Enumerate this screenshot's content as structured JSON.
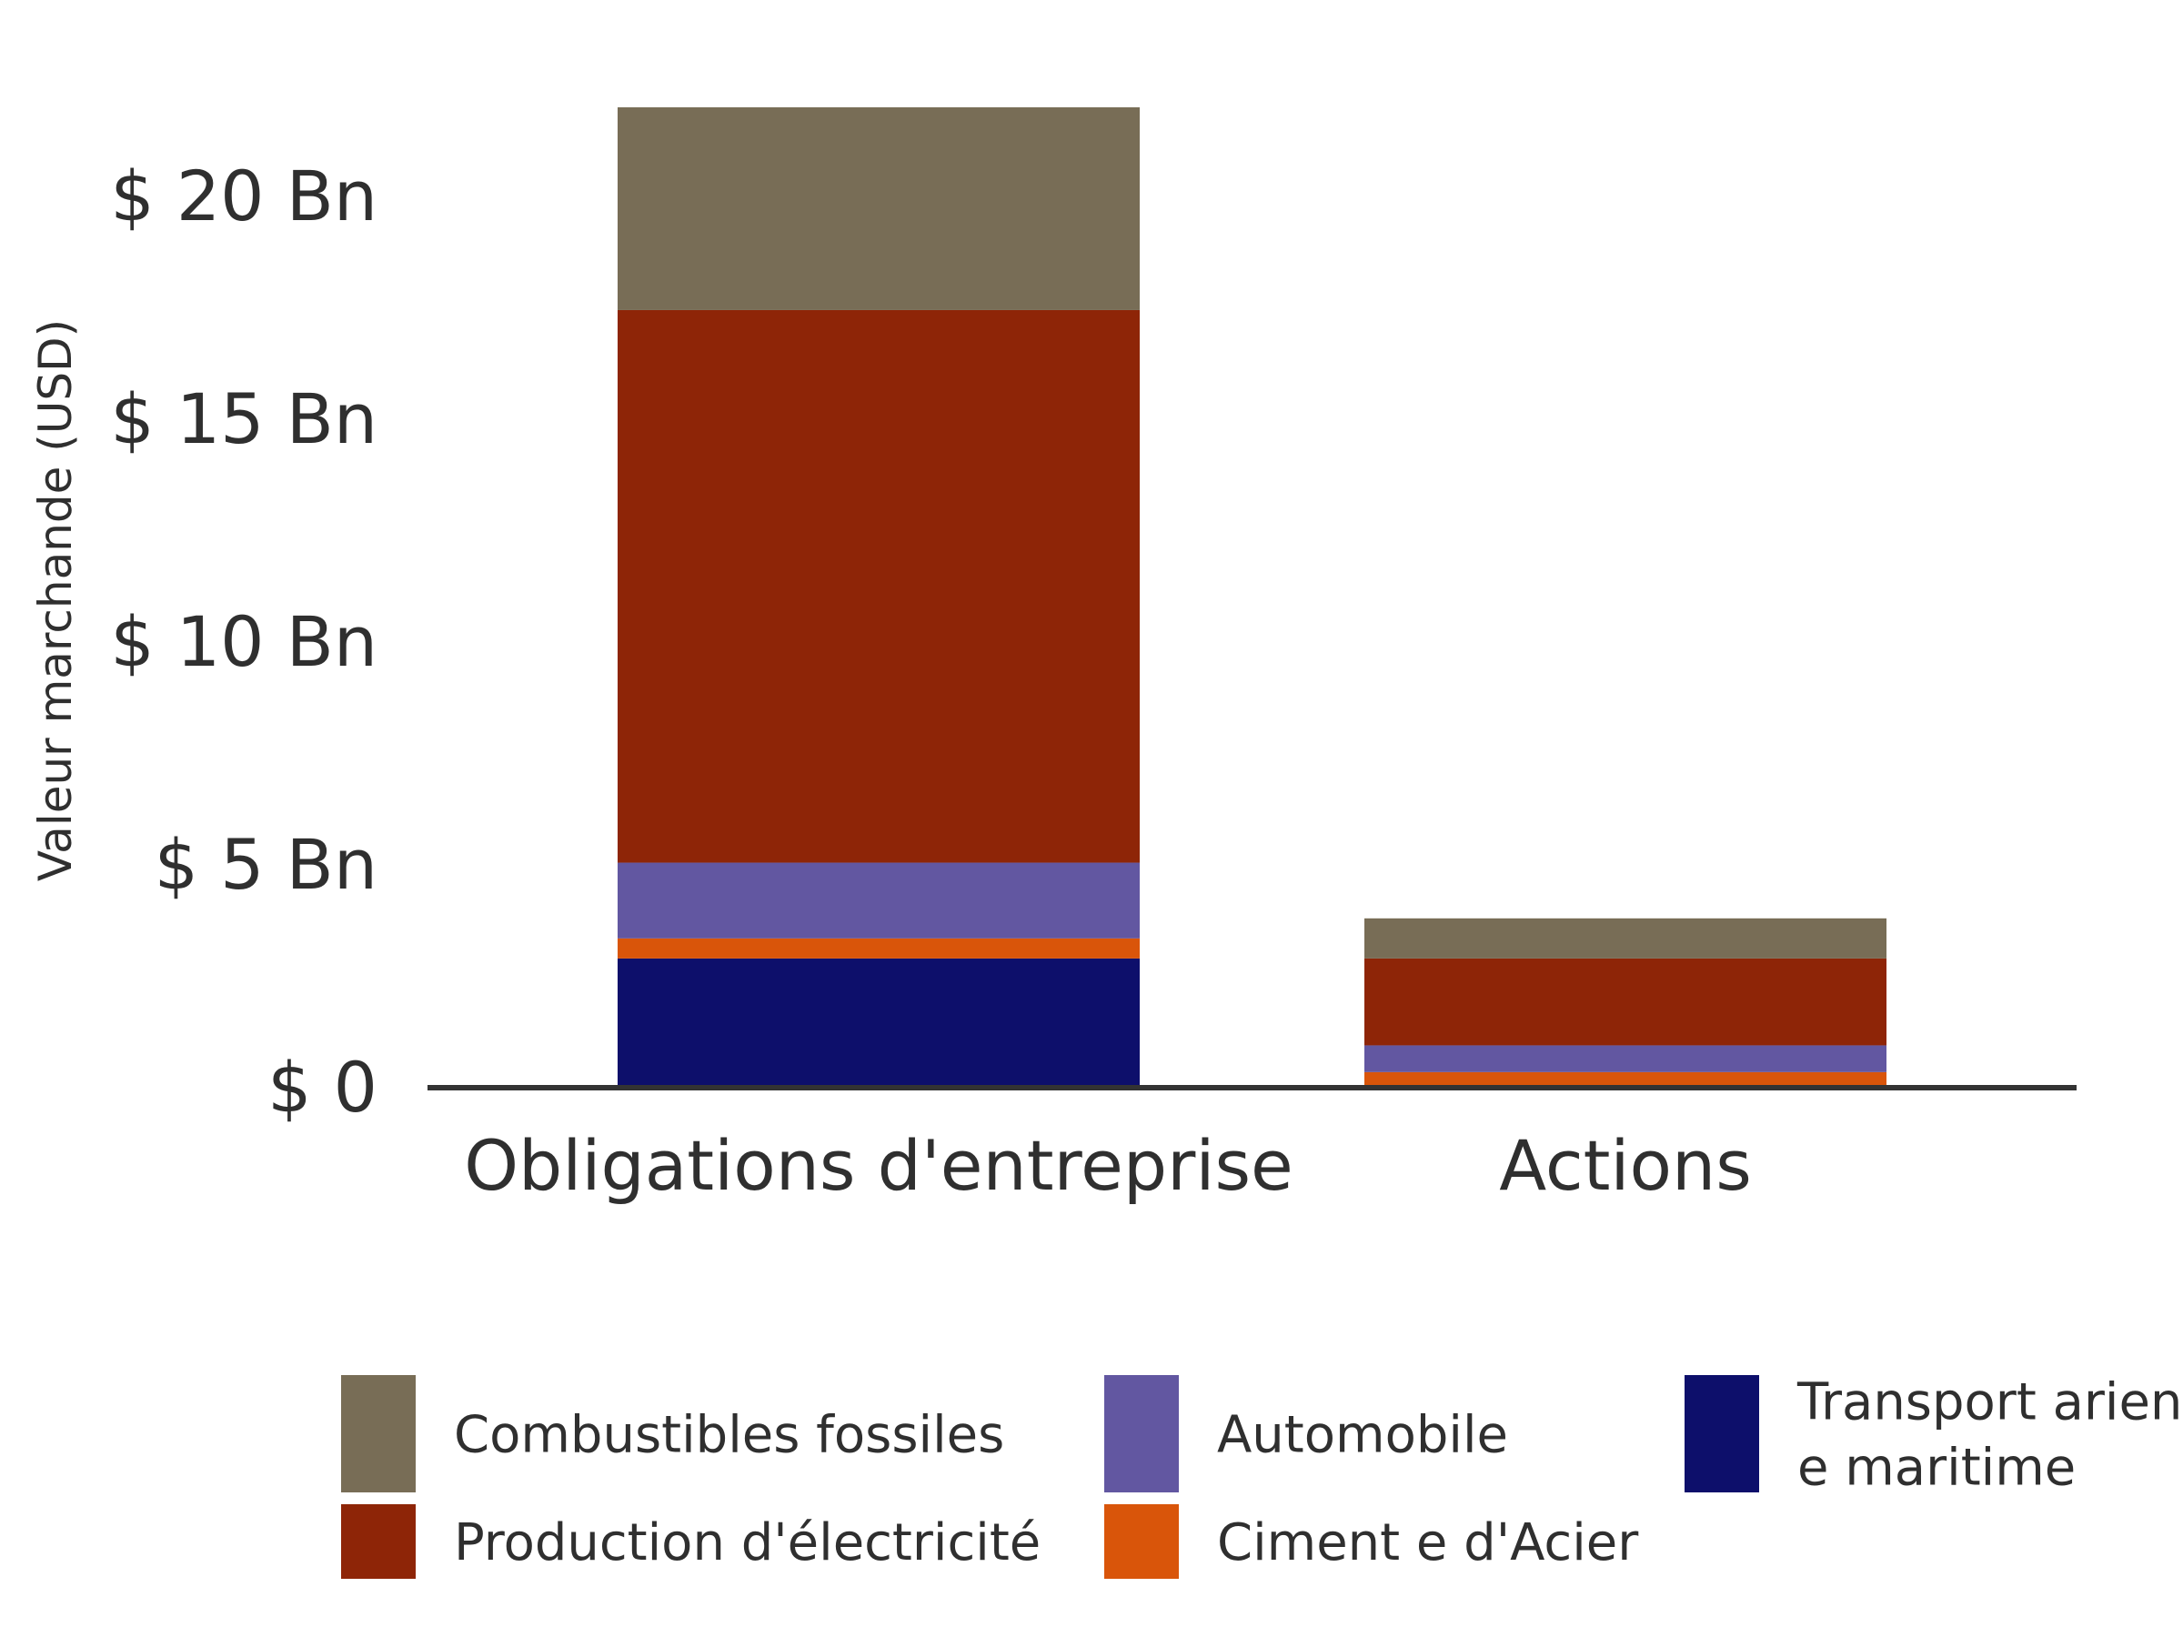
{
  "chart_data": {
    "type": "bar",
    "stacked": true,
    "title": "",
    "xlabel": "",
    "ylabel": "Valeur marchande (USD)",
    "ylim": [
      0,
      22
    ],
    "categories": [
      "Obligations d'entreprise",
      "Actions"
    ],
    "y_ticks": [
      {
        "value": 0,
        "label": "$ 0"
      },
      {
        "value": 5,
        "label": "$ 5 Bn"
      },
      {
        "value": 10,
        "label": "$ 10 Bn"
      },
      {
        "value": 15,
        "label": "$ 15 Bn"
      },
      {
        "value": 20,
        "label": "$ 20 Bn"
      }
    ],
    "series": [
      {
        "name": "Transport arien e maritime",
        "legend_lines": [
          "Transport arien",
          "e maritime"
        ],
        "color": "#0d0f6b",
        "values": [
          2.9,
          0.0
        ]
      },
      {
        "name": "Ciment e d'Acier",
        "legend_lines": [
          "Ciment e d'Acier"
        ],
        "color": "#d9550a",
        "values": [
          0.45,
          0.35
        ]
      },
      {
        "name": "Automobile",
        "legend_lines": [
          "Automobile"
        ],
        "color": "#6257a1",
        "values": [
          1.7,
          0.6
        ]
      },
      {
        "name": "Production d'électricité",
        "legend_lines": [
          "Production d'électricité"
        ],
        "color": "#8e2507",
        "values": [
          12.4,
          1.95
        ]
      },
      {
        "name": "Combustibles fossiles",
        "legend_lines": [
          "Combustibles fossiles"
        ],
        "color": "#786d56",
        "values": [
          4.55,
          0.9
        ]
      }
    ],
    "legend_order": [
      "Combustibles fossiles",
      "Automobile",
      "Transport arien e maritime",
      "Production d'électricité",
      "Ciment e d'Acier"
    ],
    "legend_position": "bottom",
    "grid": false,
    "axis_color": "#333333"
  }
}
